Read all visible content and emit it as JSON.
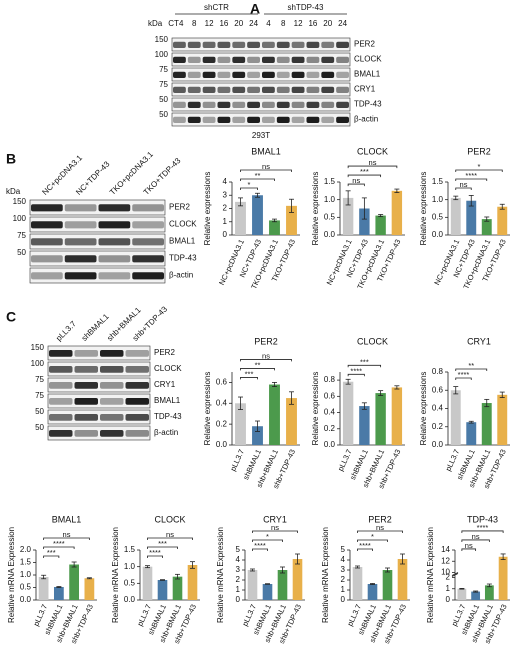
{
  "blots": [
    {
      "panel": "A",
      "kda_label": "kDa",
      "lanes": [
        "CT4",
        "8",
        "12",
        "16",
        "20",
        "24",
        "4",
        "8",
        "12",
        "16",
        "20",
        "24"
      ],
      "groups": [
        "shCTR",
        "shTDP-43"
      ],
      "markers": [
        "150",
        "100",
        "75",
        "75",
        "50",
        "50"
      ],
      "bands": [
        "PER2",
        "CLOCK",
        "BMAL1",
        "CRY1",
        "TDP-43",
        "β-actin"
      ],
      "cell_line": "293T"
    },
    {
      "panel": "B",
      "kda_label": "kDa",
      "lanes": [
        "NC+pcDNA3.1",
        "NC+TDP-43",
        "TKO+pcDNA3.1",
        "TKO+TDP-43"
      ],
      "markers": [
        "150",
        "100",
        "75",
        "50",
        ""
      ],
      "bands": [
        "PER2",
        "CLOCK",
        "BMAL1",
        "TDP-43",
        "β-actin"
      ]
    },
    {
      "panel": "C",
      "lanes": [
        "pLL3.7",
        "shBMAL1",
        "shb+BMAL1",
        "shb+TDP-43"
      ],
      "markers": [
        "150",
        "100",
        "75",
        "75",
        "50",
        "50"
      ],
      "bands": [
        "PER2",
        "CLOCK",
        "CRY1",
        "BMAL1",
        "TDP-43",
        "β-actin"
      ]
    }
  ],
  "chart_data": [
    {
      "type": "bar",
      "title": "BMAL1",
      "ylabel": "Relative expressions",
      "categories": [
        "NC+pcDNA3.1",
        "NC+TDP-43",
        "TKO+pcDNA3.1",
        "TKO+TDP-43"
      ],
      "values": [
        2.5,
        3.0,
        1.1,
        2.2
      ],
      "errors": [
        0.3,
        0.15,
        0.1,
        0.5
      ],
      "colors": [
        "#c8c8c8",
        "#4a7aa7",
        "#4c9a4c",
        "#e8b04a"
      ],
      "ylim": [
        0,
        4
      ],
      "yticks": [
        0,
        1,
        2,
        3,
        4
      ],
      "annotations": [
        "ns",
        "**",
        "*"
      ]
    },
    {
      "type": "bar",
      "title": "CLOCK",
      "ylabel": "Relative expressions",
      "categories": [
        "NC+pcDNA3.1",
        "NC+TDP-43",
        "TKO+pcDNA3.1",
        "TKO+TDP-43"
      ],
      "values": [
        1.05,
        0.75,
        0.55,
        1.25
      ],
      "errors": [
        0.2,
        0.3,
        0.03,
        0.05
      ],
      "colors": [
        "#c8c8c8",
        "#4a7aa7",
        "#4c9a4c",
        "#e8b04a"
      ],
      "ylim": [
        0,
        1.5
      ],
      "yticks": [
        {
          "value": 0,
          "label": "0.0"
        },
        0.5,
        {
          "value": 1,
          "label": "1.0"
        },
        1.5
      ],
      "annotations": [
        "ns",
        "***",
        "ns"
      ]
    },
    {
      "type": "bar",
      "title": "PER2",
      "ylabel": "Relative expressions",
      "categories": [
        "NC+pcDNA3.1",
        "NC+TDP-43",
        "TKO+pcDNA3.1",
        "TKO+TDP-43"
      ],
      "values": [
        1.05,
        0.97,
        0.45,
        0.8
      ],
      "errors": [
        0.05,
        0.15,
        0.06,
        0.07
      ],
      "colors": [
        "#c8c8c8",
        "#4a7aa7",
        "#4c9a4c",
        "#e8b04a"
      ],
      "ylim": [
        0,
        1.5
      ],
      "yticks": [
        {
          "value": 0,
          "label": "0.0"
        },
        0.5,
        {
          "value": 1,
          "label": "1.0"
        },
        1.5
      ],
      "annotations": [
        "*",
        "****",
        "ns"
      ]
    },
    {
      "type": "bar",
      "title": "PER2",
      "ylabel": "Relative expressions",
      "categories": [
        "pLL3.7",
        "shBMAL1",
        "shb+BMAL1",
        "shb+TDP-43"
      ],
      "values": [
        0.4,
        0.18,
        0.58,
        0.45
      ],
      "errors": [
        0.06,
        0.05,
        0.02,
        0.06
      ],
      "colors": [
        "#c8c8c8",
        "#4a7aa7",
        "#4c9a4c",
        "#e8b04a"
      ],
      "ylim": [
        0,
        0.7
      ],
      "yticks": [
        {
          "value": 0,
          "label": "0.0"
        },
        0.2,
        0.4,
        0.6
      ],
      "annotations": [
        "ns",
        "**",
        "***"
      ]
    },
    {
      "type": "bar",
      "title": "CLOCK",
      "ylabel": "Relative expressions",
      "categories": [
        "pLL3.7",
        "shBMAL1",
        "shb+BMAL1",
        "shb+TDP-43"
      ],
      "values": [
        0.78,
        0.48,
        0.64,
        0.71
      ],
      "errors": [
        0.03,
        0.04,
        0.03,
        0.02
      ],
      "colors": [
        "#c8c8c8",
        "#4a7aa7",
        "#4c9a4c",
        "#e8b04a"
      ],
      "ylim": [
        0,
        0.9
      ],
      "yticks": [
        {
          "value": 0,
          "label": "0.0"
        },
        0.2,
        0.4,
        0.6,
        0.8
      ],
      "annotations": [
        "***",
        "****"
      ]
    },
    {
      "type": "bar",
      "title": "CRY1",
      "ylabel": "Relative expressions",
      "categories": [
        "pLL3.7",
        "shBMAL1",
        "shb+BMAL1",
        "shb+TDP-43"
      ],
      "values": [
        0.6,
        0.25,
        0.46,
        0.55
      ],
      "errors": [
        0.04,
        0.01,
        0.04,
        0.03
      ],
      "colors": [
        "#c8c8c8",
        "#4a7aa7",
        "#4c9a4c",
        "#e8b04a"
      ],
      "ylim": [
        0,
        0.8
      ],
      "yticks": [
        {
          "value": 0,
          "label": "0.0"
        },
        0.2,
        0.4,
        0.6,
        0.8
      ],
      "annotations": [
        "**",
        "****"
      ]
    },
    {
      "type": "bar",
      "title": "BMAL1",
      "ylabel": "Relative mRNA Expression",
      "categories": [
        "pLL3.7",
        "shBMAL1",
        "shb+BMAL1",
        "shb+TDP-43"
      ],
      "values": [
        0.92,
        0.52,
        1.42,
        0.87
      ],
      "errors": [
        0.07,
        0.02,
        0.1,
        0.02
      ],
      "colors": [
        "#c8c8c8",
        "#4a7aa7",
        "#4c9a4c",
        "#e8b04a"
      ],
      "ylim": [
        0,
        2
      ],
      "yticks": [
        {
          "value": 0,
          "label": "0.0"
        },
        0.5,
        {
          "value": 1,
          "label": "1.0"
        },
        1.5,
        {
          "value": 2,
          "label": "2.0"
        }
      ],
      "annotations": [
        "ns",
        "****",
        "***"
      ]
    },
    {
      "type": "bar",
      "title": "CLOCK",
      "ylabel": "Relative mRNA Expression",
      "categories": [
        "pLL3.7",
        "shBMAL1",
        "shb+BMAL1",
        "shb+TDP-43"
      ],
      "values": [
        1.0,
        0.6,
        0.7,
        1.05
      ],
      "errors": [
        0.03,
        0.01,
        0.07,
        0.1
      ],
      "colors": [
        "#c8c8c8",
        "#4a7aa7",
        "#4c9a4c",
        "#e8b04a"
      ],
      "ylim": [
        0,
        1.5
      ],
      "yticks": [
        {
          "value": 0,
          "label": "0.0"
        },
        0.5,
        {
          "value": 1,
          "label": "1.0"
        },
        1.5
      ],
      "annotations": [
        "ns",
        "***",
        "****"
      ]
    },
    {
      "type": "bar",
      "title": "CRY1",
      "ylabel": "Relative mRNA Expression",
      "categories": [
        "pLL3.7",
        "shBMAL1",
        "shb+BMAL1",
        "shb+TDP-43"
      ],
      "values": [
        3.0,
        1.6,
        3.0,
        4.1
      ],
      "errors": [
        0.1,
        0.03,
        0.3,
        0.5
      ],
      "colors": [
        "#c8c8c8",
        "#4a7aa7",
        "#4c9a4c",
        "#e8b04a"
      ],
      "ylim": [
        0,
        5
      ],
      "yticks": [
        0,
        1,
        2,
        3,
        4,
        5
      ],
      "annotations": [
        "ns",
        "*",
        "****"
      ]
    },
    {
      "type": "bar",
      "title": "PER2",
      "ylabel": "Relative mRNA Expression",
      "categories": [
        "pLL3.7",
        "shBMAL1",
        "shb+BMAL1",
        "shb+TDP-43"
      ],
      "values": [
        3.3,
        1.6,
        3.0,
        4.1
      ],
      "errors": [
        0.1,
        0.05,
        0.2,
        0.5
      ],
      "colors": [
        "#c8c8c8",
        "#4a7aa7",
        "#4c9a4c",
        "#e8b04a"
      ],
      "ylim": [
        0,
        5
      ],
      "yticks": [
        0,
        1,
        2,
        3,
        4,
        5
      ],
      "annotations": [
        "ns",
        "*",
        "****"
      ]
    },
    {
      "type": "bar",
      "title": "TDP-43",
      "ylabel": "Relative mRNA Expression",
      "categories": [
        "pLL3.7",
        "shBMAL1",
        "shb+BMAL1",
        "shb+TDP-43"
      ],
      "values": [
        1.0,
        0.75,
        1.3,
        12.8
      ],
      "errors": [
        0.03,
        0.05,
        0.12,
        0.5
      ],
      "colors": [
        "#c8c8c8",
        "#4a7aa7",
        "#4c9a4c",
        "#e8b04a"
      ],
      "ylim": [
        0,
        14
      ],
      "ybreak": [
        2,
        10
      ],
      "yticks": [
        0,
        1,
        2,
        10,
        12,
        14
      ],
      "annotations": [
        "****",
        "ns",
        "ns"
      ]
    }
  ]
}
